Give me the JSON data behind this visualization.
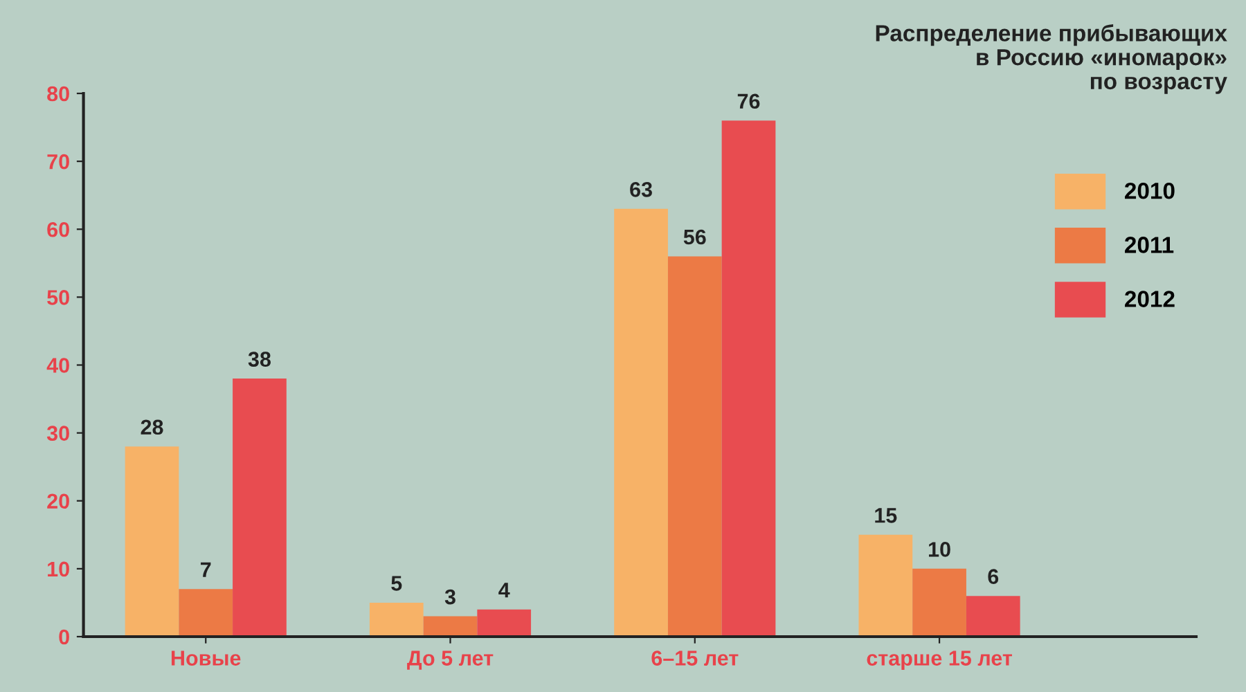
{
  "chart_data": {
    "type": "bar",
    "title": "Распределение прибывающих\nв Россию «иномарок»\nпо возрасту",
    "categories": [
      "Новые",
      "До 5 лет",
      "6–15 лет",
      "старше 15 лет"
    ],
    "series": [
      {
        "name": "2010",
        "color": "#f7b267",
        "values": [
          28,
          5,
          63,
          15
        ]
      },
      {
        "name": "2011",
        "color": "#ec7a45",
        "values": [
          7,
          3,
          56,
          10
        ]
      },
      {
        "name": "2012",
        "color": "#e84c50",
        "values": [
          38,
          4,
          76,
          6
        ]
      }
    ],
    "ylim": [
      0,
      80
    ],
    "yticks": [
      0,
      10,
      20,
      30,
      40,
      50,
      60,
      70,
      80
    ],
    "grid": false,
    "legend": "right",
    "data_labels": true
  }
}
